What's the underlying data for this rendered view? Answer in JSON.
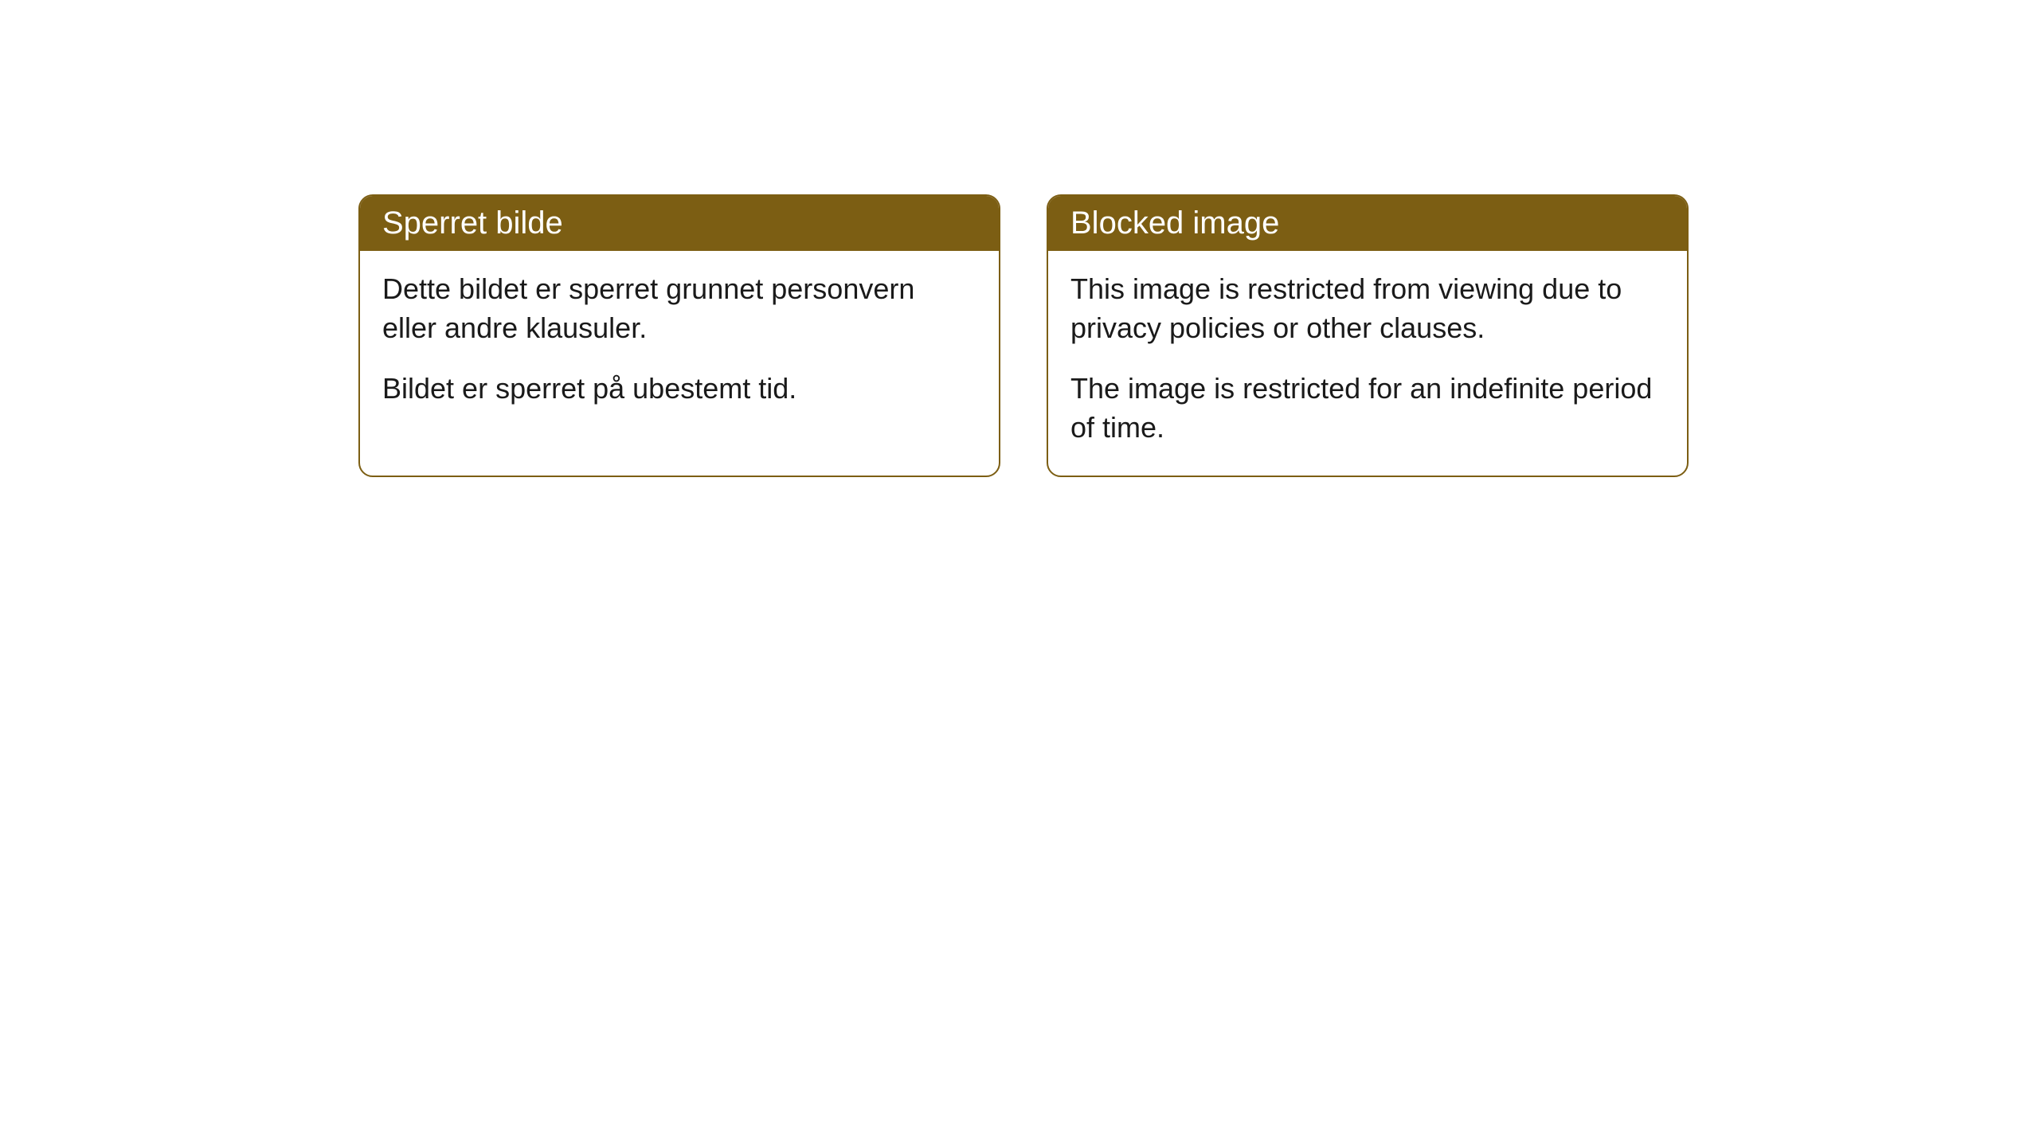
{
  "cards": [
    {
      "title": "Sperret bilde",
      "paragraph1": "Dette bildet er sperret grunnet personvern eller andre klausuler.",
      "paragraph2": "Bildet er sperret på ubestemt tid."
    },
    {
      "title": "Blocked image",
      "paragraph1": "This image is restricted from viewing due to privacy policies or other clauses.",
      "paragraph2": "The image is restricted for an indefinite period of time."
    }
  ],
  "styling": {
    "header_bg_color": "#7c5e13",
    "header_text_color": "#ffffff",
    "border_color": "#7c5e13",
    "body_bg_color": "#ffffff",
    "body_text_color": "#1a1a1a",
    "border_radius": 18,
    "title_fontsize": 40,
    "body_fontsize": 36
  }
}
